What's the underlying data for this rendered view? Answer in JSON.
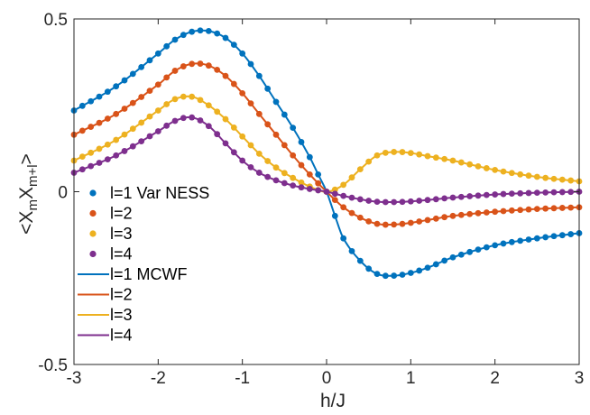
{
  "chart_data": {
    "type": "line",
    "xlabel": "h/J",
    "ylabel_main": "<X",
    "ylabel_sub1": "m",
    "ylabel_mid": "X",
    "ylabel_sub2": "m+l",
    "ylabel_end": ">",
    "xlim": [
      -3,
      3
    ],
    "ylim": [
      -0.5,
      0.5
    ],
    "xticks": [
      -3,
      -2,
      -1,
      0,
      1,
      2,
      3
    ],
    "xtick_labels": [
      "-3",
      "-2",
      "-1",
      "0",
      "1",
      "2",
      "3"
    ],
    "yticks": [
      -0.5,
      0,
      0.5
    ],
    "ytick_labels": [
      "-0.5",
      "0",
      "0.5"
    ],
    "grid": false,
    "legend_position": "left",
    "colors": [
      "#0072BD",
      "#D95319",
      "#EDB120",
      "#7E2F8E"
    ],
    "marker_legend": [
      "l=1 Var NESS",
      "l=2",
      "l=3",
      "l=4"
    ],
    "line_legend": [
      "l=1 MCWF",
      "l=2",
      "l=3",
      "l=4"
    ],
    "series": [
      {
        "x": [
          -3.0,
          -2.5,
          -2.0,
          -1.8,
          -1.6,
          -1.4,
          -1.2,
          -1.0,
          -0.8,
          -0.6,
          -0.4,
          -0.2,
          -0.1,
          0.0,
          0.1,
          0.2,
          0.4,
          0.6,
          0.8,
          1.0,
          1.2,
          1.5,
          2.0,
          2.5,
          3.0
        ],
        "y": [
          0.235,
          0.305,
          0.4,
          0.44,
          0.463,
          0.465,
          0.445,
          0.4,
          0.335,
          0.26,
          0.185,
          0.1,
          0.05,
          0.0,
          -0.07,
          -0.135,
          -0.2,
          -0.238,
          -0.243,
          -0.235,
          -0.22,
          -0.19,
          -0.155,
          -0.135,
          -0.12
        ]
      },
      {
        "x": [
          -3.0,
          -2.5,
          -2.0,
          -1.8,
          -1.6,
          -1.4,
          -1.2,
          -1.0,
          -0.8,
          -0.6,
          -0.4,
          -0.2,
          0.0,
          0.2,
          0.4,
          0.6,
          0.8,
          1.0,
          1.2,
          1.5,
          2.0,
          2.5,
          3.0
        ],
        "y": [
          0.165,
          0.225,
          0.31,
          0.35,
          0.37,
          0.365,
          0.335,
          0.285,
          0.225,
          0.165,
          0.105,
          0.05,
          0.0,
          -0.045,
          -0.075,
          -0.093,
          -0.095,
          -0.09,
          -0.082,
          -0.07,
          -0.058,
          -0.05,
          -0.045
        ]
      },
      {
        "x": [
          -3.0,
          -2.5,
          -2.0,
          -1.8,
          -1.6,
          -1.4,
          -1.2,
          -1.0,
          -0.8,
          -0.6,
          -0.4,
          -0.2,
          0.0,
          0.2,
          0.4,
          0.6,
          0.8,
          1.0,
          1.2,
          1.5,
          2.0,
          2.5,
          3.0
        ],
        "y": [
          0.09,
          0.15,
          0.235,
          0.268,
          0.275,
          0.25,
          0.21,
          0.16,
          0.11,
          0.07,
          0.04,
          0.015,
          0.0,
          0.02,
          0.065,
          0.105,
          0.115,
          0.112,
          0.103,
          0.09,
          0.063,
          0.043,
          0.03
        ]
      },
      {
        "x": [
          -3.0,
          -2.5,
          -2.0,
          -1.8,
          -1.6,
          -1.4,
          -1.2,
          -1.0,
          -0.8,
          -0.6,
          -0.4,
          -0.2,
          0.0,
          0.2,
          0.4,
          0.6,
          0.8,
          1.0,
          1.2,
          1.5,
          2.0,
          2.5,
          3.0
        ],
        "y": [
          0.055,
          0.105,
          0.175,
          0.205,
          0.215,
          0.19,
          0.14,
          0.09,
          0.055,
          0.033,
          0.018,
          0.008,
          0.0,
          -0.012,
          -0.022,
          -0.029,
          -0.03,
          -0.028,
          -0.024,
          -0.017,
          -0.008,
          -0.003,
          0.0
        ]
      }
    ]
  }
}
